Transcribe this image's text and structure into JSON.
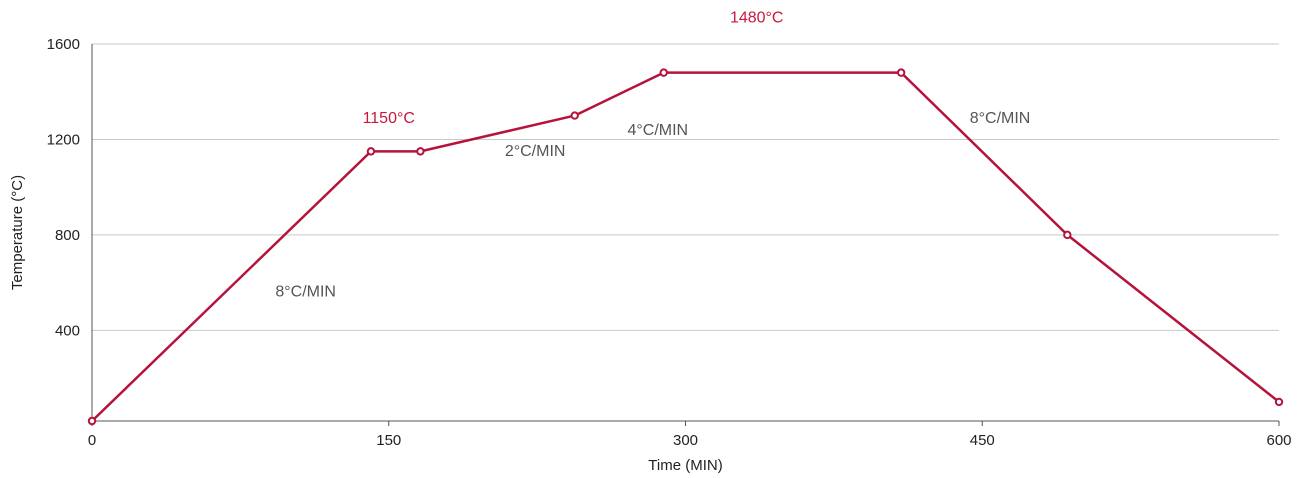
{
  "colors": {
    "series": "#b5133c",
    "grid": "#c9c9c9",
    "axis": "#555555",
    "annotation_text": "#555555",
    "annotation_highlight": "#c8193f"
  },
  "chart_data": {
    "type": "line",
    "title": "",
    "xlabel": "Time (MIN)",
    "ylabel": "Temperature (°C)",
    "xlim": [
      0,
      600
    ],
    "ylim": [
      20,
      1600
    ],
    "xticks": [
      0,
      150,
      300,
      450,
      600
    ],
    "yticks": [
      400,
      800,
      1200,
      1600
    ],
    "grid": "horizontal",
    "legend": "none",
    "series": [
      {
        "x": [
          0,
          141,
          166,
          244,
          289,
          409,
          493,
          600
        ],
        "y": [
          20,
          1150,
          1150,
          1300,
          1480,
          1480,
          800,
          100
        ]
      }
    ],
    "annotations": [
      {
        "text": "1150°C",
        "x": 150,
        "y": 1268,
        "emphasis": true
      },
      {
        "text": "1480°C",
        "x": 336,
        "y": 1690,
        "emphasis": true
      },
      {
        "text": "8°C/MIN",
        "x": 108,
        "y": 542,
        "emphasis": false
      },
      {
        "text": "2°C/MIN",
        "x": 224,
        "y": 1130,
        "emphasis": false
      },
      {
        "text": "4°C/MIN",
        "x": 286,
        "y": 1218,
        "emphasis": false
      },
      {
        "text": "8°C/MIN",
        "x": 459,
        "y": 1268,
        "emphasis": false
      }
    ]
  }
}
